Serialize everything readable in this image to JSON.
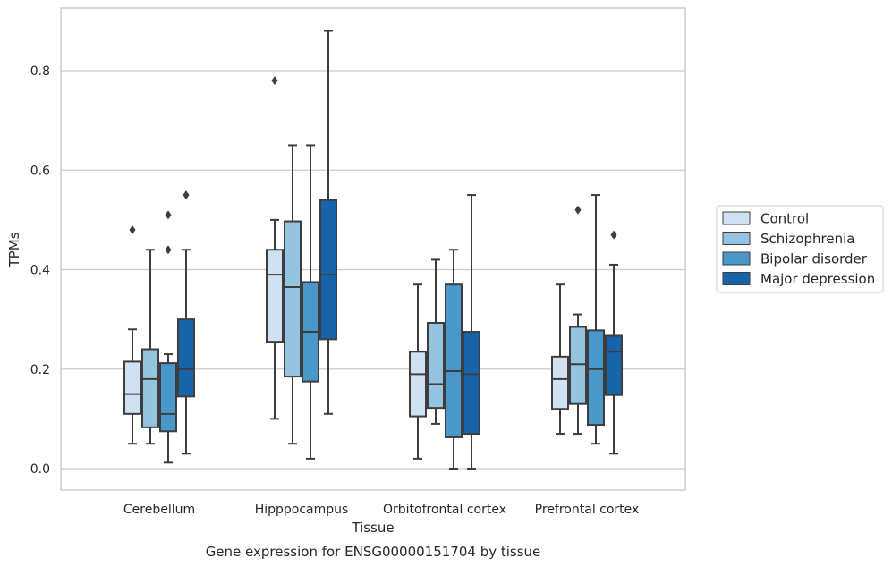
{
  "chart_data": {
    "type": "boxplot",
    "caption": "Gene expression for ENSG00000151704 by tissue",
    "xlabel": "Tissue",
    "ylabel": "TPMs",
    "ylim": [
      -0.04,
      0.925
    ],
    "yticks": [
      "0.0",
      "0.2",
      "0.4",
      "0.6",
      "0.8"
    ],
    "ytick_values": [
      0.0,
      0.2,
      0.4,
      0.6,
      0.8
    ],
    "grid": "horizontal",
    "legend_position": "right",
    "categories": [
      "Cerebellum",
      "Hipppocampus",
      "Orbitofrontal cortex",
      "Prefrontal cortex"
    ],
    "series": [
      {
        "name": "Control",
        "color": "#d0e1f2",
        "boxes": [
          {
            "whislo": 0.05,
            "q1": 0.11,
            "med": 0.15,
            "q3": 0.215,
            "whishi": 0.28,
            "fliers": [
              0.48
            ]
          },
          {
            "whislo": 0.1,
            "q1": 0.255,
            "med": 0.39,
            "q3": 0.44,
            "whishi": 0.5,
            "fliers": [
              0.78
            ]
          },
          {
            "whislo": 0.02,
            "q1": 0.105,
            "med": 0.19,
            "q3": 0.235,
            "whishi": 0.37,
            "fliers": []
          },
          {
            "whislo": 0.07,
            "q1": 0.12,
            "med": 0.18,
            "q3": 0.225,
            "whishi": 0.37,
            "fliers": []
          }
        ]
      },
      {
        "name": "Schizophrenia",
        "color": "#94c4df",
        "boxes": [
          {
            "whislo": 0.05,
            "q1": 0.083,
            "med": 0.18,
            "q3": 0.24,
            "whishi": 0.44,
            "fliers": []
          },
          {
            "whislo": 0.05,
            "q1": 0.185,
            "med": 0.365,
            "q3": 0.497,
            "whishi": 0.65,
            "fliers": []
          },
          {
            "whislo": 0.09,
            "q1": 0.122,
            "med": 0.17,
            "q3": 0.293,
            "whishi": 0.42,
            "fliers": []
          },
          {
            "whislo": 0.07,
            "q1": 0.13,
            "med": 0.21,
            "q3": 0.285,
            "whishi": 0.31,
            "fliers": [
              0.52
            ]
          }
        ]
      },
      {
        "name": "Bipolar disorder",
        "color": "#4a98c9",
        "boxes": [
          {
            "whislo": 0.012,
            "q1": 0.075,
            "med": 0.11,
            "q3": 0.212,
            "whishi": 0.23,
            "fliers": [
              0.44,
              0.51
            ]
          },
          {
            "whislo": 0.02,
            "q1": 0.175,
            "med": 0.275,
            "q3": 0.375,
            "whishi": 0.65,
            "fliers": []
          },
          {
            "whislo": 0.0,
            "q1": 0.063,
            "med": 0.196,
            "q3": 0.37,
            "whishi": 0.44,
            "fliers": []
          },
          {
            "whislo": 0.05,
            "q1": 0.088,
            "med": 0.2,
            "q3": 0.278,
            "whishi": 0.55,
            "fliers": []
          }
        ]
      },
      {
        "name": "Major depression",
        "color": "#1764ab",
        "boxes": [
          {
            "whislo": 0.03,
            "q1": 0.145,
            "med": 0.2,
            "q3": 0.3,
            "whishi": 0.44,
            "fliers": [
              0.55
            ]
          },
          {
            "whislo": 0.11,
            "q1": 0.26,
            "med": 0.39,
            "q3": 0.54,
            "whishi": 0.88,
            "fliers": []
          },
          {
            "whislo": 0.0,
            "q1": 0.07,
            "med": 0.19,
            "q3": 0.275,
            "whishi": 0.55,
            "fliers": []
          },
          {
            "whislo": 0.03,
            "q1": 0.148,
            "med": 0.235,
            "q3": 0.267,
            "whishi": 0.41,
            "fliers": [
              0.47
            ]
          }
        ]
      }
    ]
  }
}
